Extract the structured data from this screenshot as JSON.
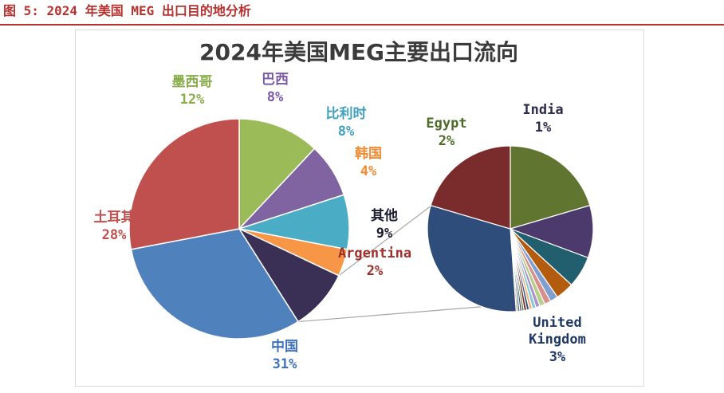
{
  "caption": "图 5: 2024 年美国 MEG 出口目的地分析",
  "colors": {
    "caption": "#b5322e",
    "rule": "#b5322e"
  },
  "chart_data": {
    "type": "pie",
    "subtype": "pie-of-pie",
    "title": "2024年美国MEG主要出口流向",
    "main_pie": [
      {
        "label": "墨西哥",
        "value": 12,
        "value_text": "12%",
        "color": "#9bbb59",
        "label_color": "#8aad4c"
      },
      {
        "label": "巴西",
        "value": 8,
        "value_text": "8%",
        "color": "#8064a2",
        "label_color": "#7a5aa8"
      },
      {
        "label": "比利时",
        "value": 8,
        "value_text": "8%",
        "color": "#4bacc6",
        "label_color": "#3fa0c0"
      },
      {
        "label": "韩国",
        "value": 4,
        "value_text": "4%",
        "color": "#f79646",
        "label_color": "#f08a30"
      },
      {
        "label": "其他",
        "value": 9,
        "value_text": "9%",
        "color": "#3a2f55",
        "label_color": "#1a1a2e"
      },
      {
        "label": "中国",
        "value": 31,
        "value_text": "31%",
        "color": "#4f81bd",
        "label_color": "#3f72b8"
      },
      {
        "label": "土耳其",
        "value": 28,
        "value_text": "28%",
        "color": "#c0504d",
        "label_color": "#c0504d"
      }
    ],
    "secondary_pie": {
      "source": "其他",
      "slices": [
        {
          "label": "Egypt",
          "value": 2,
          "value_text": "2%",
          "color": "#5f7530",
          "label_color": "#4e6b2a"
        },
        {
          "label": "India",
          "value": 1,
          "value_text": "1%",
          "color": "#4b3a6b",
          "label_color": "#2b2b4a"
        },
        {
          "label": "",
          "value": 0.6,
          "color": "#215f6e"
        },
        {
          "label": "",
          "value": 0.35,
          "color": "#b35c10"
        },
        {
          "label": "",
          "value": 0.15,
          "color": "#7f9fd0"
        },
        {
          "label": "",
          "value": 0.12,
          "color": "#d98f8a"
        },
        {
          "label": "",
          "value": 0.1,
          "color": "#b8cf8c"
        },
        {
          "label": "",
          "value": 0.08,
          "color": "#a995c9"
        },
        {
          "label": "",
          "value": 0.07,
          "color": "#86c8da"
        },
        {
          "label": "",
          "value": 0.06,
          "color": "#f6b27b"
        },
        {
          "label": "",
          "value": 0.05,
          "color": "#2e4d80"
        },
        {
          "label": "",
          "value": 0.05,
          "color": "#7a2e2c"
        },
        {
          "label": "",
          "value": 0.04,
          "color": "#5c7a2e"
        },
        {
          "label": "",
          "value": 0.04,
          "color": "#55416f"
        },
        {
          "label": "",
          "value": 0.04,
          "color": "#2a7d92"
        },
        {
          "label": "",
          "value": 0.03,
          "color": "#c97f2a"
        },
        {
          "label": "United Kingdom",
          "value": 3,
          "value_text": "3%",
          "color": "#2e4d7a",
          "label_color": "#1f3864"
        },
        {
          "label": "Argentina",
          "value": 2,
          "value_text": "2%",
          "color": "#7a2b2b",
          "label_color": "#a0302c"
        }
      ]
    },
    "legend": "none",
    "grid": false
  }
}
